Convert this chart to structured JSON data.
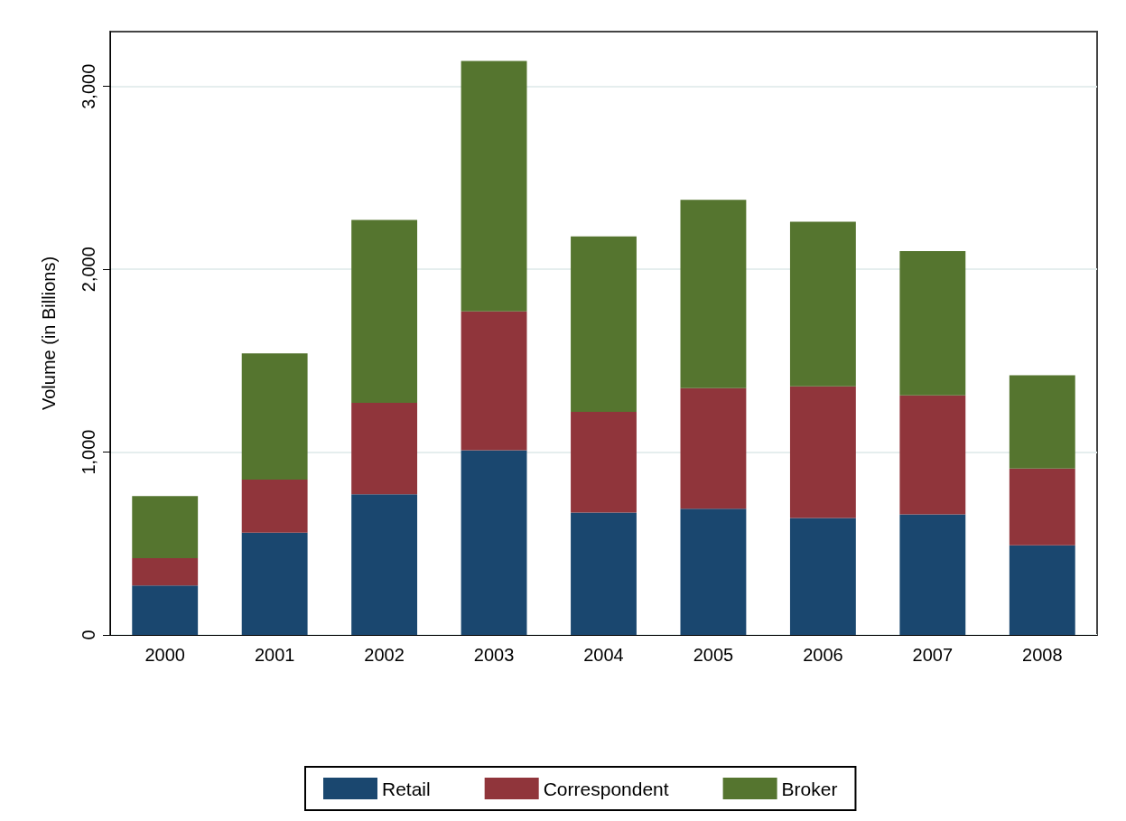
{
  "chart_data": {
    "type": "bar",
    "stacked": true,
    "ylabel": "Volume (in Billions)",
    "categories": [
      "2000",
      "2001",
      "2002",
      "2003",
      "2004",
      "2005",
      "2006",
      "2007",
      "2008"
    ],
    "series": [
      {
        "name": "Retail",
        "color": "#1a476f",
        "values": [
          270,
          560,
          770,
          1010,
          670,
          690,
          640,
          660,
          490
        ]
      },
      {
        "name": "Correspondent",
        "color": "#90353b",
        "values": [
          150,
          290,
          500,
          760,
          550,
          660,
          720,
          650,
          420
        ]
      },
      {
        "name": "Broker",
        "color": "#55752f",
        "values": [
          340,
          690,
          1000,
          1370,
          960,
          1030,
          900,
          790,
          510
        ]
      }
    ],
    "ylim": [
      0,
      3300
    ],
    "yticks": [
      0,
      {
        "value": 1000,
        "label": "1,000"
      },
      {
        "value": 2000,
        "label": "2,000"
      },
      {
        "value": 3000,
        "label": "3,000"
      }
    ],
    "grid": "y",
    "legend": "bottom"
  }
}
